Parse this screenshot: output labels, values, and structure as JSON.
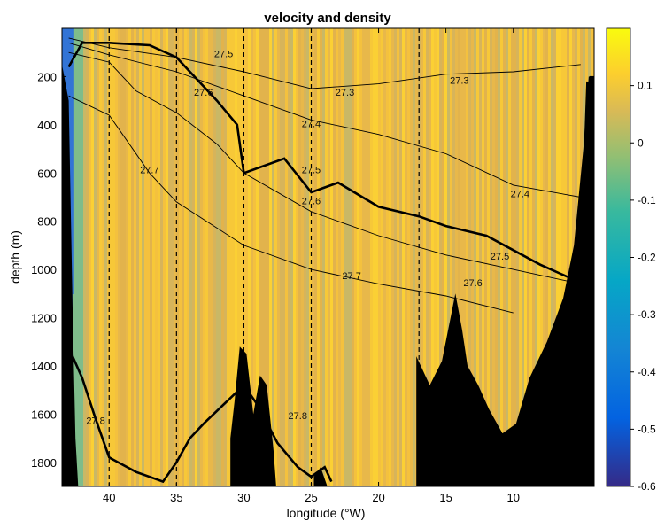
{
  "chart_data": {
    "type": "heatmap",
    "title": "velocity and density",
    "xlabel": "longitude (°W)",
    "ylabel": "depth (m)",
    "xlim": [
      43.5,
      4
    ],
    "ylim": [
      1900,
      0
    ],
    "x_ticks": [
      40,
      35,
      30,
      25,
      20,
      15,
      10
    ],
    "x_tick_labels": [
      "40",
      "35",
      "30",
      "25",
      "20",
      "15",
      "10"
    ],
    "y_ticks": [
      200,
      400,
      600,
      800,
      1000,
      1200,
      1400,
      1600,
      1800
    ],
    "y_tick_labels": [
      "200",
      "400",
      "600",
      "800",
      "1000",
      "1200",
      "1400",
      "1600",
      "1800"
    ],
    "colorbar": {
      "colormap": "parula",
      "range": [
        -0.6,
        0.2
      ],
      "ticks": [
        0.1,
        0,
        -0.1,
        -0.2,
        -0.3,
        -0.4,
        -0.5,
        -0.6
      ],
      "tick_labels": [
        "0.1",
        "0",
        "-0.1",
        "-0.2",
        "-0.3",
        "-0.4",
        "-0.5",
        "-0.6"
      ]
    },
    "station_lines_lon": [
      40,
      35,
      30,
      25,
      17
    ],
    "isopycnals": [
      {
        "label": "27.3",
        "bold": false,
        "lon": [
          43,
          40,
          35,
          30,
          25,
          20,
          15,
          10,
          5
        ],
        "depth": [
          40,
          80,
          120,
          180,
          250,
          230,
          190,
          180,
          150
        ]
      },
      {
        "label": "27.4",
        "bold": false,
        "lon": [
          43,
          40,
          35,
          30,
          25,
          20,
          15,
          10,
          5
        ],
        "depth": [
          60,
          110,
          180,
          280,
          380,
          440,
          520,
          650,
          700
        ]
      },
      {
        "label": "27.5",
        "bold": true,
        "lon": [
          43,
          42,
          40,
          37,
          35,
          32,
          30.5,
          30,
          27,
          25,
          23,
          20,
          17,
          15,
          12,
          10,
          8,
          6,
          5,
          4.5
        ],
        "depth": [
          160,
          60,
          60,
          70,
          120,
          300,
          400,
          600,
          540,
          680,
          640,
          740,
          780,
          820,
          860,
          920,
          980,
          1030,
          1040,
          220
        ]
      },
      {
        "label": "27.6",
        "bold": false,
        "lon": [
          43,
          40,
          38,
          35,
          32,
          30,
          25,
          20,
          15,
          10,
          5
        ],
        "depth": [
          100,
          140,
          260,
          350,
          480,
          600,
          760,
          860,
          940,
          1000,
          1060
        ]
      },
      {
        "label": "27.7",
        "bold": false,
        "lon": [
          43,
          40,
          37,
          35,
          30,
          25,
          20,
          15,
          10
        ],
        "depth": [
          280,
          360,
          600,
          720,
          900,
          1000,
          1060,
          1110,
          1180
        ]
      },
      {
        "label": "27.8",
        "bold": true,
        "lon": [
          42.8,
          42,
          41,
          40,
          38,
          36,
          35,
          34,
          33,
          30,
          29,
          27.5,
          26,
          25,
          24,
          23.5
        ],
        "depth": [
          1350,
          1450,
          1620,
          1780,
          1840,
          1880,
          1800,
          1700,
          1640,
          1480,
          1560,
          1720,
          1820,
          1860,
          1820,
          1880
        ]
      }
    ]
  }
}
